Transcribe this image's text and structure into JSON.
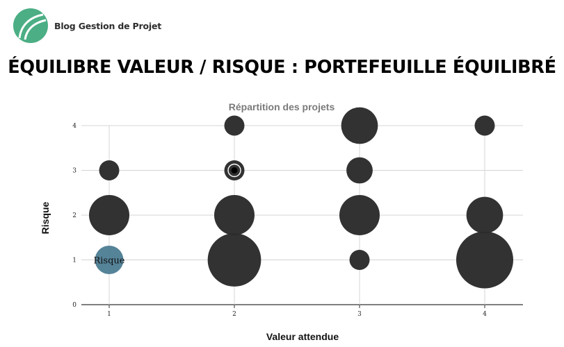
{
  "brand": {
    "name": "Blog Gestion de Projet",
    "logo_icon": "leaf-logo-icon",
    "logo_color": "#4cae84"
  },
  "headline": "ÉQUILIBRE VALEUR / RISQUE : PORTEFEUILLE ÉQUILIBRÉ",
  "chart_data": {
    "type": "scatter",
    "title": "Répartition des projets",
    "xlabel": "Valeur attendue",
    "ylabel": "Risque",
    "x_ticks": [
      1,
      2,
      3,
      4
    ],
    "y_ticks": [
      0,
      1,
      2,
      3,
      4
    ],
    "xlim": [
      0.5,
      4.3
    ],
    "ylim": [
      0,
      4
    ],
    "grid": true,
    "bubble_color": "#2b2b2b",
    "highlight_color": "#4f7f95",
    "points": [
      {
        "x": 1,
        "y": 1,
        "size": 2,
        "highlight": true,
        "label": "Risque"
      },
      {
        "x": 1,
        "y": 2,
        "size": 4
      },
      {
        "x": 1,
        "y": 3,
        "size": 1
      },
      {
        "x": 2,
        "y": 1,
        "size": 7
      },
      {
        "x": 2,
        "y": 2,
        "size": 4
      },
      {
        "x": 2,
        "y": 3,
        "size": 1
      },
      {
        "x": 2,
        "y": 4,
        "size": 1
      },
      {
        "x": 3,
        "y": 1,
        "size": 1
      },
      {
        "x": 3,
        "y": 2,
        "size": 4
      },
      {
        "x": 3,
        "y": 3,
        "size": 1.7
      },
      {
        "x": 3,
        "y": 4,
        "size": 3.3
      },
      {
        "x": 4,
        "y": 1,
        "size": 8
      },
      {
        "x": 4,
        "y": 2,
        "size": 3.3
      },
      {
        "x": 4,
        "y": 4,
        "size": 1
      }
    ]
  }
}
